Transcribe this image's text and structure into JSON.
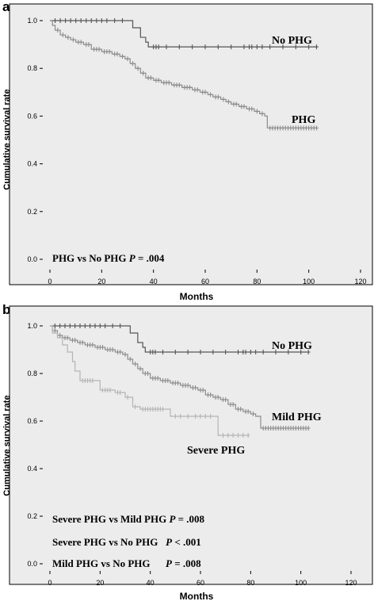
{
  "chart_data": [
    {
      "panel_label": "a",
      "type": "line",
      "xlabel": "Months",
      "ylabel": "Cumulative survival rate",
      "xlim": [
        0,
        120
      ],
      "ylim": [
        0,
        1.0
      ],
      "x_ticks": [
        "0",
        "20",
        "40",
        "60",
        "80",
        "100",
        "120"
      ],
      "y_ticks": [
        "0.0",
        "0.2",
        "0.4",
        "0.6",
        "0.8",
        "1.0"
      ],
      "grid": false,
      "annotation": {
        "prefix": "PHG vs No PHG ",
        "p": "P",
        "suffix": " = .004"
      },
      "series": [
        {
          "name": "No PHG",
          "color": "#555555",
          "steps": [
            [
              0,
              1.0
            ],
            [
              30,
              1.0
            ],
            [
              32,
              0.97
            ],
            [
              35,
              0.93
            ],
            [
              37,
              0.91
            ],
            [
              38,
              0.89
            ],
            [
              103,
              0.89
            ]
          ],
          "censored": [
            2,
            4,
            6,
            8,
            10,
            12,
            14,
            16,
            18,
            20,
            22,
            25,
            28,
            40,
            41,
            42,
            45,
            50,
            55,
            60,
            65,
            70,
            75,
            77,
            78,
            80,
            82,
            85,
            90,
            95,
            100,
            103
          ]
        },
        {
          "name": "PHG",
          "color": "#8c8c8c",
          "steps": [
            [
              0,
              1.0
            ],
            [
              1,
              0.98
            ],
            [
              2,
              0.96
            ],
            [
              4,
              0.94
            ],
            [
              6,
              0.93
            ],
            [
              8,
              0.92
            ],
            [
              10,
              0.91
            ],
            [
              13,
              0.9
            ],
            [
              16,
              0.88
            ],
            [
              20,
              0.87
            ],
            [
              24,
              0.86
            ],
            [
              27,
              0.85
            ],
            [
              29,
              0.84
            ],
            [
              31,
              0.82
            ],
            [
              33,
              0.8
            ],
            [
              35,
              0.78
            ],
            [
              37,
              0.76
            ],
            [
              40,
              0.75
            ],
            [
              43,
              0.74
            ],
            [
              47,
              0.73
            ],
            [
              51,
              0.72
            ],
            [
              55,
              0.71
            ],
            [
              58,
              0.7
            ],
            [
              61,
              0.69
            ],
            [
              63,
              0.68
            ],
            [
              66,
              0.67
            ],
            [
              68,
              0.66
            ],
            [
              70,
              0.65
            ],
            [
              73,
              0.64
            ],
            [
              76,
              0.63
            ],
            [
              79,
              0.62
            ],
            [
              81,
              0.61
            ],
            [
              83,
              0.6
            ],
            [
              84,
              0.55
            ],
            [
              103,
              0.55
            ]
          ],
          "censored": [
            3,
            5,
            7,
            9,
            11,
            12,
            14,
            15,
            17,
            18,
            19,
            21,
            22,
            23,
            25,
            26,
            28,
            30,
            32,
            34,
            36,
            38,
            39,
            41,
            42,
            44,
            45,
            46,
            48,
            49,
            50,
            52,
            53,
            54,
            56,
            57,
            59,
            60,
            62,
            64,
            65,
            67,
            69,
            71,
            72,
            74,
            75,
            77,
            78,
            80,
            82,
            85,
            86,
            87,
            88,
            89,
            90,
            91,
            92,
            93,
            94,
            95,
            96,
            97,
            98,
            99,
            100,
            101,
            102,
            103
          ]
        }
      ],
      "series_labels": [
        "No PHG",
        "PHG"
      ]
    },
    {
      "panel_label": "b",
      "type": "line",
      "xlabel": "Months",
      "ylabel": "Cumulative survival rate",
      "xlim": [
        0,
        120
      ],
      "ylim": [
        0,
        1.0
      ],
      "x_ticks": [
        "0",
        "20",
        "40",
        "60",
        "80",
        "100",
        "120"
      ],
      "y_ticks": [
        "0.0",
        "0.2",
        "0.4",
        "0.6",
        "0.8",
        "1.0"
      ],
      "grid": false,
      "annotations": [
        {
          "prefix": "Severe PHG vs Mild PHG ",
          "p": "P",
          "suffix": " = .008"
        },
        {
          "prefix": "Severe PHG vs No PHG   ",
          "p": "P",
          "suffix": " < .001"
        },
        {
          "prefix": "Mild PHG vs No PHG      ",
          "p": "P",
          "suffix": " = .008"
        }
      ],
      "series": [
        {
          "name": "No PHG",
          "color": "#555555",
          "steps": [
            [
              0,
              1.0
            ],
            [
              30,
              1.0
            ],
            [
              32,
              0.97
            ],
            [
              35,
              0.93
            ],
            [
              37,
              0.91
            ],
            [
              38,
              0.89
            ],
            [
              103,
              0.89
            ]
          ],
          "censored": [
            2,
            4,
            6,
            8,
            10,
            12,
            14,
            16,
            18,
            20,
            22,
            25,
            28,
            40,
            41,
            42,
            45,
            50,
            55,
            60,
            65,
            70,
            75,
            77,
            78,
            80,
            82,
            85,
            90,
            95,
            100,
            103
          ]
        },
        {
          "name": "Mild PHG",
          "color": "#8c8c8c",
          "steps": [
            [
              0,
              1.0
            ],
            [
              1,
              0.98
            ],
            [
              3,
              0.96
            ],
            [
              5,
              0.95
            ],
            [
              8,
              0.94
            ],
            [
              11,
              0.93
            ],
            [
              14,
              0.92
            ],
            [
              18,
              0.91
            ],
            [
              22,
              0.9
            ],
            [
              26,
              0.89
            ],
            [
              29,
              0.88
            ],
            [
              31,
              0.86
            ],
            [
              33,
              0.84
            ],
            [
              35,
              0.82
            ],
            [
              37,
              0.8
            ],
            [
              40,
              0.78
            ],
            [
              44,
              0.77
            ],
            [
              48,
              0.76
            ],
            [
              52,
              0.75
            ],
            [
              56,
              0.74
            ],
            [
              59,
              0.73
            ],
            [
              62,
              0.71
            ],
            [
              65,
              0.7
            ],
            [
              68,
              0.69
            ],
            [
              71,
              0.67
            ],
            [
              74,
              0.65
            ],
            [
              77,
              0.64
            ],
            [
              80,
              0.63
            ],
            [
              82,
              0.62
            ],
            [
              84,
              0.57
            ],
            [
              103,
              0.57
            ]
          ],
          "censored": [
            2,
            4,
            6,
            7,
            9,
            10,
            12,
            13,
            15,
            16,
            17,
            19,
            20,
            21,
            23,
            24,
            25,
            27,
            28,
            30,
            32,
            34,
            36,
            38,
            39,
            41,
            42,
            43,
            45,
            46,
            47,
            49,
            50,
            51,
            53,
            54,
            55,
            57,
            58,
            60,
            61,
            63,
            64,
            66,
            67,
            69,
            70,
            72,
            73,
            75,
            76,
            78,
            79,
            81,
            85,
            86,
            87,
            88,
            89,
            90,
            91,
            92,
            93,
            94,
            95,
            96,
            97,
            98,
            99,
            100,
            101,
            102,
            103
          ]
        },
        {
          "name": "Severe PHG",
          "color": "#b4b4b4",
          "steps": [
            [
              0,
              1.0
            ],
            [
              1,
              0.97
            ],
            [
              3,
              0.95
            ],
            [
              5,
              0.92
            ],
            [
              7,
              0.89
            ],
            [
              9,
              0.85
            ],
            [
              10,
              0.81
            ],
            [
              12,
              0.77
            ],
            [
              18,
              0.77
            ],
            [
              20,
              0.73
            ],
            [
              26,
              0.72
            ],
            [
              30,
              0.7
            ],
            [
              33,
              0.66
            ],
            [
              36,
              0.65
            ],
            [
              46,
              0.65
            ],
            [
              48,
              0.62
            ],
            [
              66,
              0.62
            ],
            [
              67,
              0.54
            ],
            [
              79,
              0.54
            ]
          ],
          "censored": [
            13,
            14,
            15,
            16,
            17,
            21,
            22,
            23,
            24,
            27,
            28,
            31,
            34,
            37,
            38,
            39,
            40,
            41,
            42,
            43,
            44,
            45,
            50,
            52,
            55,
            58,
            60,
            62,
            64,
            69,
            71,
            73,
            75,
            77,
            79
          ]
        }
      ],
      "series_labels": [
        "No PHG",
        "Mild PHG",
        "Severe PHG"
      ]
    }
  ]
}
